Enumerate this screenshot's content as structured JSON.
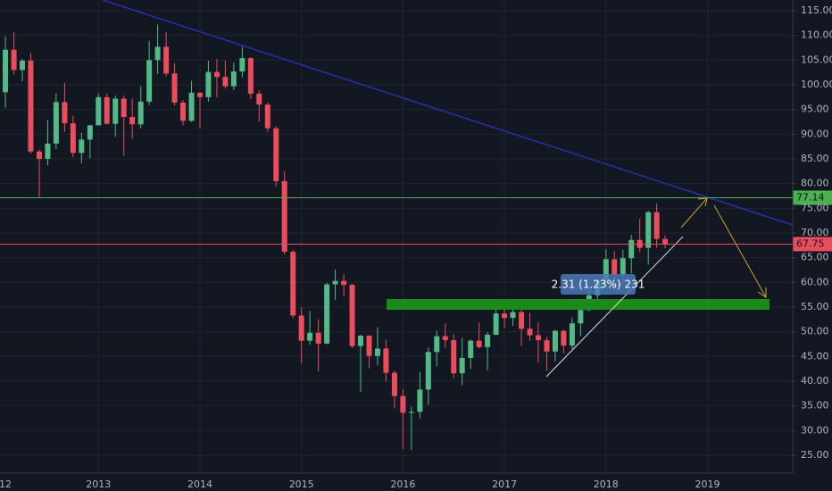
{
  "chart_data": {
    "type": "candlestick",
    "xlim": [
      2012.03,
      2019.84
    ],
    "xticks": [
      {
        "value": 2012,
        "label": "12"
      },
      2013,
      2014,
      2015,
      2016,
      2017,
      2018,
      2019
    ],
    "ylim": [
      21.38,
      117.17
    ],
    "yticks": [
      {
        "value": 25,
        "label": "25.00"
      },
      {
        "value": 30,
        "label": "30.00"
      },
      {
        "value": 35,
        "label": "35.00"
      },
      {
        "value": 40,
        "label": "40.00"
      },
      {
        "value": 45,
        "label": "45.00"
      },
      {
        "value": 50,
        "label": "50.00"
      },
      {
        "value": 55,
        "label": "55.00"
      },
      {
        "value": 60,
        "label": "60.00"
      },
      {
        "value": 65,
        "label": "65.00"
      },
      {
        "value": 70,
        "label": "70.00"
      },
      {
        "value": 75,
        "label": "75.00"
      },
      {
        "value": 80,
        "label": "80.00"
      },
      {
        "value": 85,
        "label": "85.00"
      },
      {
        "value": 90,
        "label": "90.00"
      },
      {
        "value": 95,
        "label": "95.00"
      },
      {
        "value": 100,
        "label": "100.00"
      },
      {
        "value": 105,
        "label": "105.00"
      },
      {
        "value": 110,
        "label": "110.00"
      },
      {
        "value": 115,
        "label": "115.00"
      }
    ],
    "grid": true,
    "up_color": "#53b987",
    "down_color": "#eb4d5c",
    "x": [
      2012.083,
      2012.167,
      2012.25,
      2012.333,
      2012.417,
      2012.5,
      2012.583,
      2012.667,
      2012.75,
      2012.833,
      2012.917,
      2013,
      2013.083,
      2013.167,
      2013.25,
      2013.333,
      2013.417,
      2013.5,
      2013.583,
      2013.667,
      2013.75,
      2013.833,
      2013.917,
      2014,
      2014.083,
      2014.167,
      2014.25,
      2014.333,
      2014.417,
      2014.5,
      2014.583,
      2014.667,
      2014.75,
      2014.833,
      2014.917,
      2015,
      2015.083,
      2015.167,
      2015.25,
      2015.333,
      2015.417,
      2015.5,
      2015.583,
      2015.667,
      2015.75,
      2015.833,
      2015.917,
      2016,
      2016.083,
      2016.167,
      2016.25,
      2016.333,
      2016.417,
      2016.5,
      2016.583,
      2016.667,
      2016.75,
      2016.833,
      2016.917,
      2017,
      2017.083,
      2017.167,
      2017.25,
      2017.333,
      2017.417,
      2017.5,
      2017.583,
      2017.667,
      2017.75,
      2017.833,
      2017.917,
      2018,
      2018.083,
      2018.167,
      2018.25,
      2018.333,
      2018.417,
      2018.5,
      2018.583
    ],
    "open": [
      98.5,
      107.1,
      103.0,
      104.9,
      86.5,
      85.0,
      88.1,
      96.5,
      92.2,
      86.2,
      88.9,
      91.8,
      97.5,
      92.1,
      97.2,
      93.5,
      92.0,
      96.6,
      105.0,
      107.7,
      102.3,
      96.4,
      92.7,
      98.4,
      97.5,
      102.6,
      101.6,
      99.7,
      102.7,
      105.4,
      98.2,
      96.0,
      91.2,
      80.5,
      66.2,
      53.3,
      48.2,
      49.8,
      47.6,
      59.6,
      60.3,
      59.5,
      47.1,
      49.2,
      45.1,
      46.6,
      41.7,
      37.0,
      33.6,
      33.8,
      38.3,
      45.9,
      49.1,
      48.3,
      41.6,
      44.7,
      48.2,
      46.9,
      49.4,
      53.7,
      52.8,
      54.0,
      50.6,
      49.3,
      48.3,
      46.0,
      50.2,
      47.2,
      51.7,
      54.4,
      57.4,
      60.4,
      64.7,
      61.6,
      64.9,
      68.6,
      67.0,
      74.2,
      68.8
    ],
    "high": [
      109.8,
      110.6,
      105.2,
      106.5,
      86.9,
      92.9,
      98.3,
      100.4,
      93.8,
      90.3,
      91.9,
      98.2,
      98.2,
      97.8,
      97.8,
      97.2,
      99.7,
      108.9,
      112.2,
      110.7,
      104.4,
      96.9,
      100.8,
      98.5,
      104.9,
      105.2,
      104.9,
      104.5,
      107.7,
      105.6,
      98.9,
      96.4,
      91.6,
      82.5,
      66.6,
      55.0,
      54.2,
      52.5,
      59.9,
      62.6,
      61.6,
      59.7,
      49.4,
      49.3,
      50.9,
      48.4,
      42.1,
      38.4,
      34.8,
      41.9,
      46.8,
      50.2,
      51.7,
      49.5,
      48.8,
      48.4,
      51.9,
      49.9,
      55.2,
      55.2,
      54.9,
      54.6,
      53.8,
      52.0,
      49.0,
      50.4,
      50.4,
      52.9,
      55.2,
      59.1,
      60.5,
      66.7,
      66.3,
      66.6,
      69.6,
      72.9,
      74.5,
      76.0,
      69.5
    ],
    "low": [
      95.4,
      102.1,
      100.7,
      86.1,
      77.3,
      83.7,
      87.0,
      90.5,
      85.3,
      84.1,
      85.1,
      91.8,
      92.0,
      89.5,
      85.6,
      89.0,
      91.2,
      95.9,
      102.2,
      101.7,
      95.8,
      91.8,
      92.5,
      91.2,
      96.6,
      97.4,
      99.2,
      98.9,
      101.5,
      97.1,
      92.5,
      90.4,
      79.4,
      65.7,
      52.8,
      43.6,
      47.4,
      42.0,
      47.5,
      56.5,
      57.2,
      46.7,
      37.8,
      42.6,
      43.2,
      40.0,
      34.5,
      26.2,
      26.1,
      32.5,
      35.2,
      43.0,
      46.7,
      40.6,
      39.2,
      42.5,
      46.6,
      42.2,
      49.3,
      50.7,
      51.2,
      47.1,
      48.2,
      43.8,
      42.1,
      44.0,
      45.6,
      46.5,
      49.1,
      54.2,
      55.8,
      59.1,
      58.1,
      59.9,
      61.8,
      66.1,
      63.6,
      67.0,
      66.9
    ],
    "close": [
      107.1,
      103.0,
      104.9,
      86.5,
      85.0,
      88.1,
      96.5,
      92.2,
      86.2,
      88.9,
      91.8,
      97.5,
      92.1,
      97.2,
      93.5,
      92.0,
      96.6,
      105.0,
      107.7,
      102.3,
      96.4,
      92.7,
      98.4,
      97.5,
      102.6,
      101.6,
      99.7,
      102.7,
      105.4,
      98.2,
      96.0,
      91.2,
      80.5,
      66.2,
      53.3,
      48.2,
      49.8,
      47.6,
      59.6,
      60.3,
      59.5,
      47.1,
      49.2,
      45.1,
      46.6,
      41.7,
      37.0,
      33.6,
      33.8,
      38.3,
      45.9,
      49.1,
      48.3,
      41.6,
      44.7,
      48.2,
      46.9,
      49.4,
      53.7,
      52.8,
      54.0,
      50.6,
      49.3,
      48.3,
      46.0,
      50.2,
      47.2,
      51.7,
      54.4,
      57.4,
      60.4,
      64.7,
      61.6,
      64.9,
      68.6,
      67.0,
      74.2,
      68.8,
      67.75
    ],
    "levels": [
      {
        "value": 77.14,
        "color": "#4caf50"
      },
      {
        "value": 67.75,
        "color": "#eb4d5c"
      }
    ],
    "annotation": "2.31 (1.23%) 231"
  }
}
